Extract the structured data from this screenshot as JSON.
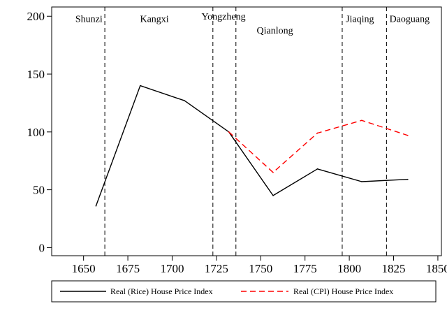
{
  "chart_data": {
    "type": "line",
    "title": "",
    "xlabel": "",
    "ylabel": "",
    "xlim": [
      1632,
      1852
    ],
    "ylim": [
      -7,
      208
    ],
    "xticks": [
      1650,
      1675,
      1700,
      1725,
      1750,
      1775,
      1800,
      1825,
      1850
    ],
    "yticks": [
      0,
      50,
      100,
      150,
      200
    ],
    "grid": false,
    "legend_position": "bottom",
    "series": [
      {
        "name": "Real (Rice) House Price Index",
        "style": "solid",
        "color": "#000000",
        "x": [
          1657,
          1682,
          1707,
          1732,
          1757,
          1782,
          1807,
          1833
        ],
        "y": [
          36,
          140,
          127,
          100,
          45,
          68,
          57,
          59
        ]
      },
      {
        "name": "Real (CPI) House Price Index",
        "style": "dashed",
        "color": "#ff0000",
        "x": [
          1732,
          1757,
          1782,
          1807,
          1833
        ],
        "y": [
          100,
          65,
          99,
          110,
          97
        ]
      }
    ],
    "reign_boundaries": [
      1662,
      1723,
      1736,
      1796,
      1821
    ],
    "reigns": [
      {
        "name": "Shunzi",
        "x": 1653,
        "y": 195
      },
      {
        "name": "Kangxi",
        "x": 1690,
        "y": 195
      },
      {
        "name": "Yongzheng",
        "x": 1729,
        "y": 197
      },
      {
        "name": "Qianlong",
        "x": 1758,
        "y": 185
      },
      {
        "name": "Jiaqing",
        "x": 1806,
        "y": 195
      },
      {
        "name": "Daoguang",
        "x": 1834,
        "y": 195
      }
    ]
  }
}
